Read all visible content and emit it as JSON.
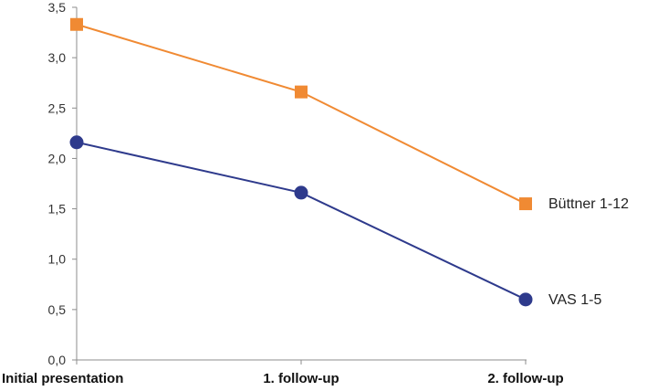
{
  "chart_data": {
    "type": "line",
    "categories": [
      "Initial presentation",
      "1. follow-up",
      "2. follow-up"
    ],
    "ylim": [
      0,
      3.5
    ],
    "yticks": [
      "0,0",
      "0,5",
      "1,0",
      "1,5",
      "2,0",
      "2,5",
      "3,0",
      "3,5"
    ],
    "grid": false,
    "legend": "inline labels at right end of each line",
    "series": [
      {
        "name": "Büttner 1-12",
        "values": [
          3.33,
          2.66,
          1.55
        ],
        "color": "#F08A33",
        "marker": "square"
      },
      {
        "name": "VAS 1-5",
        "values": [
          2.16,
          1.66,
          0.6
        ],
        "color": "#2E3A8C",
        "marker": "circle"
      }
    ]
  }
}
